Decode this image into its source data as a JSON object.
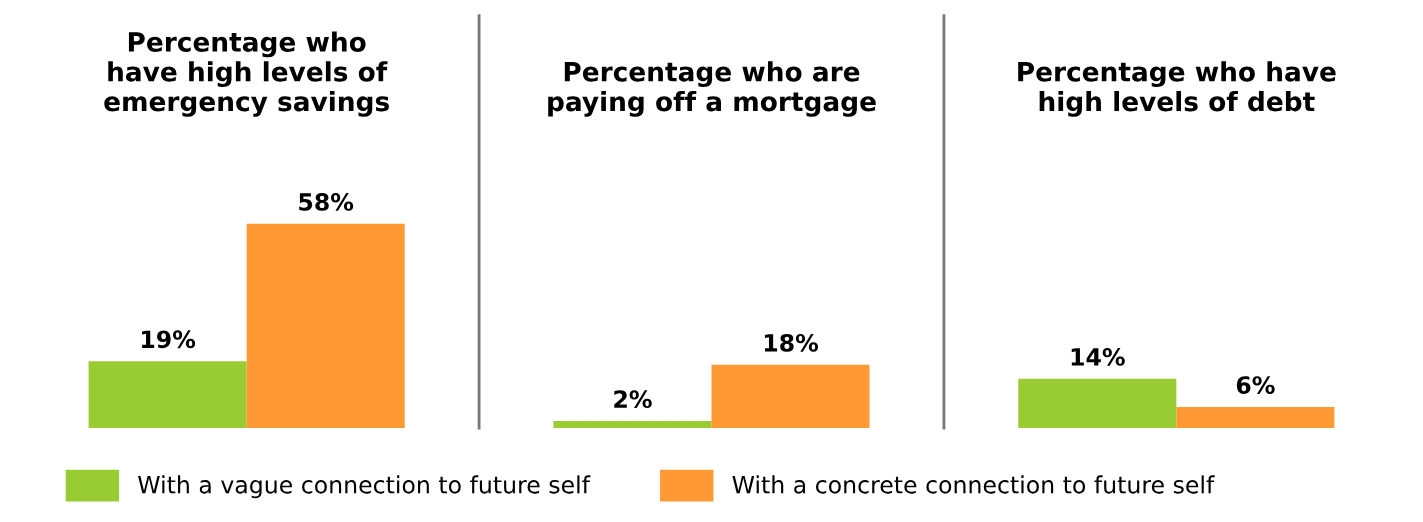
{
  "chart_data": {
    "type": "bar",
    "categories": [
      "Percentage who\nhave high levels of\nemergency savings",
      "Percentage who are\npaying off a mortgage",
      "Percentage who have\nhigh levels of debt"
    ],
    "legend": "bottom",
    "series": [
      {
        "name": "With a vague connection to future self",
        "color": "#99cc33",
        "values": [
          19,
          2,
          14
        ],
        "value_labels": [
          "19%",
          "2%",
          "14%"
        ]
      },
      {
        "name": "With a concrete connection to future self",
        "color": "#ff9933",
        "values": [
          58,
          18,
          6
        ],
        "value_labels": [
          "58%",
          "18%",
          "6%"
        ]
      }
    ]
  }
}
